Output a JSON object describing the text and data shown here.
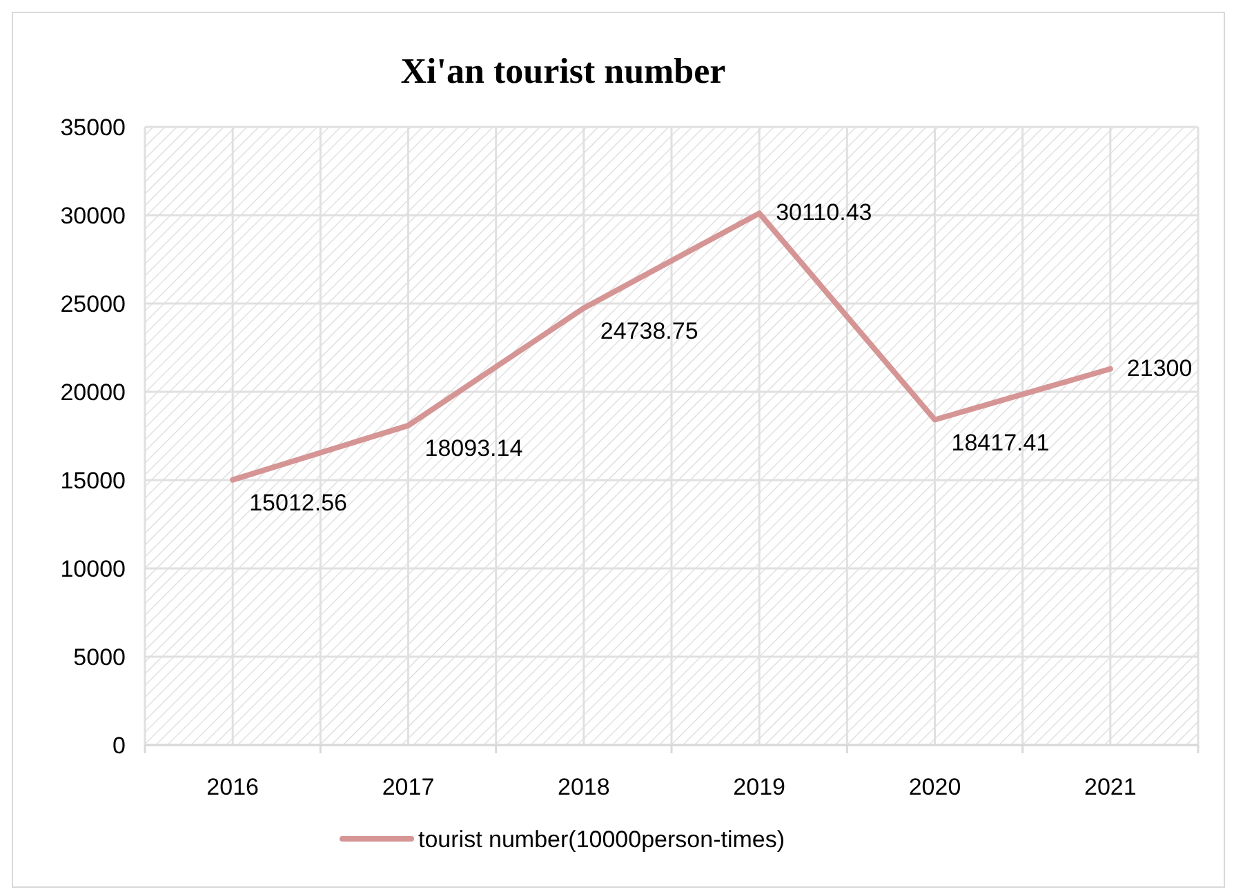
{
  "chart_data": {
    "type": "line",
    "title": "Xi'an tourist number",
    "categories": [
      "2016",
      "2017",
      "2018",
      "2019",
      "2020",
      "2021"
    ],
    "series": [
      {
        "name": "tourist number(10000person-times)",
        "color": "#d69595",
        "values": [
          15012.56,
          18093.14,
          24738.75,
          30110.43,
          18417.41,
          21300
        ]
      }
    ],
    "ylim": [
      0,
      35000
    ],
    "yticks": [
      0,
      5000,
      10000,
      15000,
      20000,
      25000,
      30000,
      35000
    ],
    "grid": true,
    "legend": "bottom",
    "data_labels": true,
    "marker": "none",
    "line_style": "solid"
  }
}
